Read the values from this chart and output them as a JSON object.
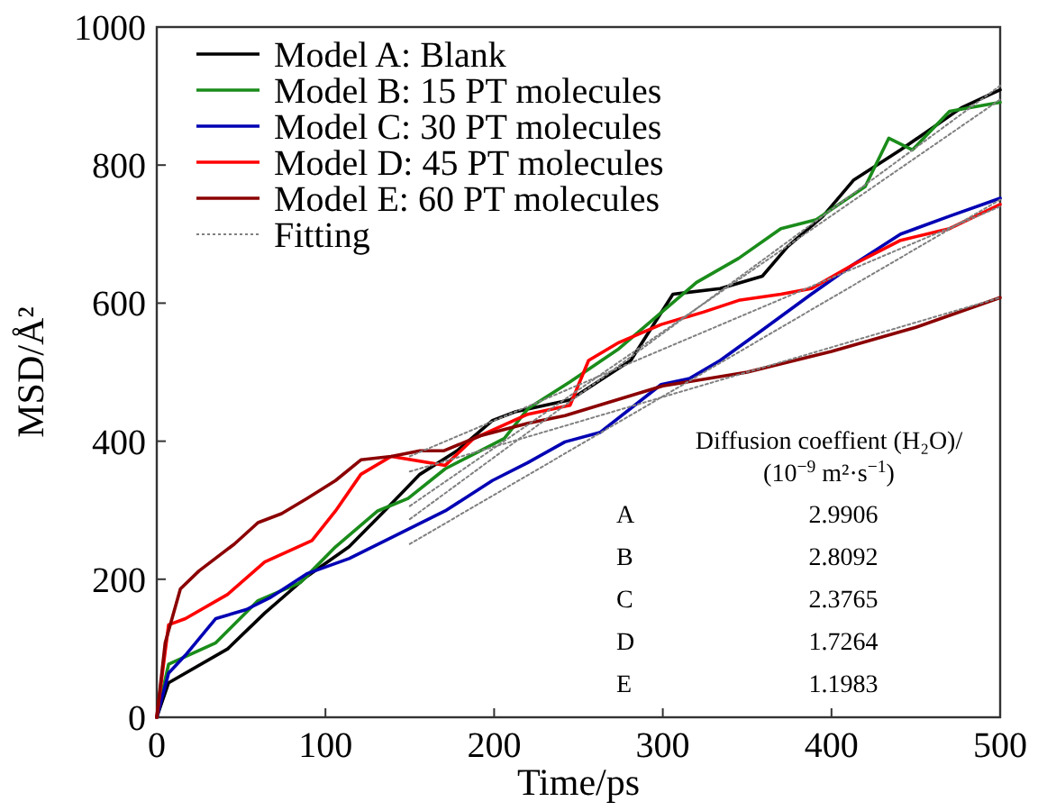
{
  "chart_data": {
    "type": "line",
    "xlabel": "Time/ps",
    "ylabel": "MSD/Å²",
    "xlim": [
      0,
      500
    ],
    "ylim": [
      0,
      1000
    ],
    "xticks": [
      0,
      100,
      200,
      300,
      400,
      500
    ],
    "yticks": [
      0,
      200,
      400,
      600,
      800,
      1000
    ],
    "grid": false,
    "legend": "top left",
    "line_style": "solid",
    "marker": "none",
    "series": [
      {
        "name": "Model A: Blank",
        "color": "#000000",
        "x": [
          0,
          7,
          42,
          64,
          89,
          114,
          135,
          156,
          178,
          199,
          213,
          245,
          281,
          306,
          334,
          359,
          374,
          395,
          413,
          441,
          477,
          500
        ],
        "values": [
          0,
          50,
          99,
          151,
          204,
          247,
          299,
          352,
          386,
          430,
          443,
          460,
          517,
          613,
          621,
          639,
          682,
          726,
          778,
          822,
          883,
          909
        ]
      },
      {
        "name": "Model B: 15 PT molecules",
        "color": "#1a8c1a",
        "x": [
          0,
          7,
          35,
          60,
          85,
          106,
          131,
          149,
          171,
          206,
          220,
          245,
          274,
          320,
          345,
          370,
          391,
          420,
          434,
          448,
          470,
          500
        ],
        "values": [
          0,
          77,
          108,
          169,
          195,
          247,
          299,
          317,
          360,
          404,
          447,
          486,
          534,
          630,
          665,
          708,
          721,
          769,
          839,
          822,
          878,
          891
        ]
      },
      {
        "name": "Model C: 30 PT molecules",
        "color": "#0000b4",
        "x": [
          0,
          7,
          17,
          35,
          53,
          67,
          89,
          114,
          142,
          171,
          199,
          220,
          242,
          263,
          299,
          316,
          334,
          359,
          388,
          413,
          441,
          470,
          500
        ],
        "values": [
          0,
          64,
          90,
          143,
          156,
          173,
          208,
          230,
          264,
          299,
          343,
          369,
          399,
          413,
          482,
          491,
          517,
          561,
          613,
          656,
          700,
          726,
          752
        ]
      },
      {
        "name": "Model D: 45 PT molecules",
        "color": "#ff0000",
        "x": [
          0,
          7,
          17,
          42,
          64,
          92,
          106,
          121,
          139,
          171,
          188,
          220,
          245,
          256,
          274,
          299,
          324,
          345,
          370,
          388,
          413,
          441,
          470,
          500
        ],
        "values": [
          0,
          134,
          143,
          178,
          225,
          256,
          299,
          352,
          378,
          365,
          404,
          439,
          452,
          517,
          543,
          569,
          587,
          604,
          613,
          621,
          656,
          691,
          708,
          743
        ]
      },
      {
        "name": "Model E: 60 PT molecules",
        "color": "#8b0000",
        "x": [
          0,
          5,
          14,
          25,
          46,
          60,
          74,
          89,
          106,
          121,
          139,
          156,
          170,
          192,
          220,
          242,
          300,
          350,
          400,
          450,
          500
        ],
        "values": [
          0,
          108,
          186,
          212,
          251,
          282,
          295,
          317,
          343,
          373,
          378,
          386,
          386,
          408,
          426,
          437,
          480,
          500,
          530,
          565,
          608
        ]
      },
      {
        "name": "Fitting",
        "color": "#808080",
        "line_style": "dotted",
        "x": [
          150,
          500
        ],
        "values": [
          287,
          915
        ]
      },
      {
        "color": "#808080",
        "line_style": "dotted",
        "x": [
          150,
          500
        ],
        "values": [
          306,
          895
        ]
      },
      {
        "color": "#808080",
        "line_style": "dotted",
        "x": [
          150,
          500
        ],
        "values": [
          251,
          750
        ]
      },
      {
        "color": "#808080",
        "line_style": "dotted",
        "x": [
          150,
          500
        ],
        "values": [
          378,
          740
        ]
      },
      {
        "color": "#808080",
        "line_style": "dotted",
        "x": [
          150,
          500
        ],
        "values": [
          356,
          608
        ]
      }
    ],
    "annotations": [
      "Diffusion coeffient (H₂O)/",
      "(10$^{−9}$ m²·s$^{−1}$)",
      "A",
      "2.9906",
      "B",
      "2.8092",
      "C",
      "2.3765",
      "D",
      "1.7264",
      "E",
      "1.1983"
    ]
  }
}
